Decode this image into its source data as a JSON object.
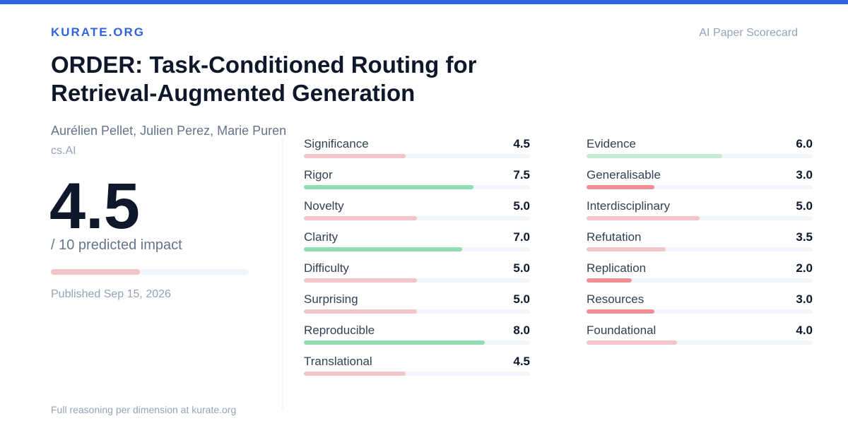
{
  "brand": "KURATE.ORG",
  "card_type": "AI Paper Scorecard",
  "paper": {
    "title": "ORDER: Task-Conditioned Routing for Retrieval-Augmented Generation",
    "authors": "Aurélien Pellet, Julien Perez, Marie Puren",
    "category": "cs.AI",
    "score": "4.5",
    "score_value": 4.5,
    "score_max": 10,
    "score_caption": "/ 10 predicted impact",
    "published": "Published Sep 15, 2026"
  },
  "footer": "Full reasoning per dimension at kurate.org",
  "colors": {
    "accent": "#2f64e0",
    "green_strong": "#8fddb0",
    "green_light": "#c6ecd6",
    "red_strong": "#ef8f95",
    "red_light": "#f2c6c9",
    "track": "#f1f5f9"
  },
  "dimensions_left": [
    {
      "name": "Significance",
      "score": "4.5",
      "value": 4.5
    },
    {
      "name": "Rigor",
      "score": "7.5",
      "value": 7.5
    },
    {
      "name": "Novelty",
      "score": "5.0",
      "value": 5.0
    },
    {
      "name": "Clarity",
      "score": "7.0",
      "value": 7.0
    },
    {
      "name": "Difficulty",
      "score": "5.0",
      "value": 5.0
    },
    {
      "name": "Surprising",
      "score": "5.0",
      "value": 5.0
    },
    {
      "name": "Reproducible",
      "score": "8.0",
      "value": 8.0
    },
    {
      "name": "Translational",
      "score": "4.5",
      "value": 4.5
    }
  ],
  "dimensions_right": [
    {
      "name": "Evidence",
      "score": "6.0",
      "value": 6.0
    },
    {
      "name": "Generalisable",
      "score": "3.0",
      "value": 3.0
    },
    {
      "name": "Interdisciplinary",
      "score": "5.0",
      "value": 5.0
    },
    {
      "name": "Refutation",
      "score": "3.5",
      "value": 3.5
    },
    {
      "name": "Replication",
      "score": "2.0",
      "value": 2.0
    },
    {
      "name": "Resources",
      "score": "3.0",
      "value": 3.0
    },
    {
      "name": "Foundational",
      "score": "4.0",
      "value": 4.0
    }
  ]
}
